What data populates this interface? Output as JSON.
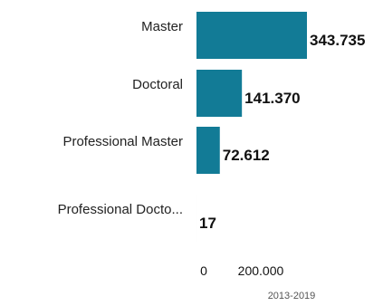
{
  "chart_data": {
    "type": "bar",
    "orientation": "horizontal",
    "categories": [
      "Master",
      "Doctoral",
      "Professional Master",
      "Professional Docto..."
    ],
    "values": [
      343735,
      141370,
      72612,
      17
    ],
    "value_labels": [
      "343.735",
      "141.370",
      "72.612",
      "17"
    ],
    "xlim": [
      0,
      343735
    ],
    "x_ticks": [
      0,
      200000
    ],
    "x_tick_labels": [
      "0",
      "200.000"
    ],
    "xlabel": "2013-2019",
    "title": "",
    "ylabel": "",
    "bar_color": "#127b96",
    "grid": false,
    "legend": "none"
  }
}
